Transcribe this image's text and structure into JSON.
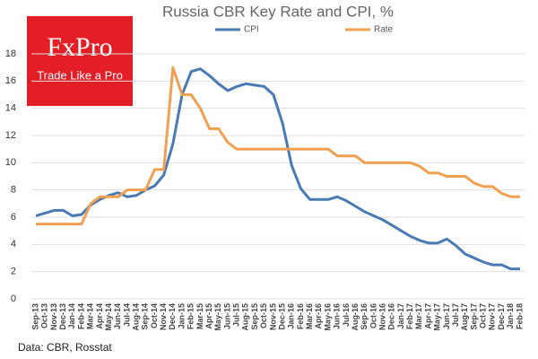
{
  "brand": {
    "name": "FxPro",
    "tagline": "Trade Like a Pro"
  },
  "source": "Data: CBR, Rosstat",
  "chart_data": {
    "type": "line",
    "title": "Russia CBR Key Rate and CPI, %",
    "categories": [
      "Sep-13",
      "Oct-13",
      "Nov-13",
      "Dec-13",
      "Jan-14",
      "Feb-14",
      "Mar-14",
      "Apr-14",
      "May-14",
      "Jun-14",
      "Jul-14",
      "Aug-14",
      "Sep-14",
      "Oct-14",
      "Nov-14",
      "Dec-14",
      "Jan-15",
      "Feb-15",
      "Mar-15",
      "Apr-15",
      "May-15",
      "Jun-15",
      "Jul-15",
      "Aug-15",
      "Sep-15",
      "Oct-15",
      "Nov-15",
      "Dec-15",
      "Jan-16",
      "Feb-16",
      "Mar-16",
      "Apr-16",
      "May-16",
      "Jun-16",
      "Jul-16",
      "Aug-16",
      "Sep-16",
      "Oct-16",
      "Nov-16",
      "Dec-16",
      "Jan-17",
      "Feb-17",
      "Mar-17",
      "Apr-17",
      "May-17",
      "Jun-17",
      "Jul-17",
      "Aug-17",
      "Sep-17",
      "Oct-17",
      "Nov-17",
      "Dec-17",
      "Jan-18",
      "Feb-18"
    ],
    "series": [
      {
        "name": "CPI",
        "color": "#4a7ab5",
        "values": [
          6.1,
          6.3,
          6.5,
          6.5,
          6.1,
          6.2,
          6.9,
          7.3,
          7.6,
          7.8,
          7.5,
          7.6,
          8.0,
          8.3,
          9.1,
          11.4,
          15.0,
          16.7,
          16.9,
          16.4,
          15.8,
          15.3,
          15.6,
          15.8,
          15.7,
          15.6,
          15.0,
          12.9,
          9.8,
          8.1,
          7.3,
          7.3,
          7.3,
          7.5,
          7.2,
          6.8,
          6.4,
          6.1,
          5.8,
          5.4,
          5.0,
          4.6,
          4.3,
          4.1,
          4.1,
          4.4,
          3.9,
          3.3,
          3.0,
          2.7,
          2.5,
          2.5,
          2.2,
          2.2
        ]
      },
      {
        "name": "Rate",
        "color": "#f0a050",
        "values": [
          5.5,
          5.5,
          5.5,
          5.5,
          5.5,
          5.5,
          7,
          7.5,
          7.5,
          7.5,
          8,
          8,
          8,
          9.5,
          9.5,
          17,
          15,
          15,
          14,
          12.5,
          12.5,
          11.5,
          11,
          11,
          11,
          11,
          11,
          11,
          11,
          11,
          11,
          11,
          11,
          10.5,
          10.5,
          10.5,
          10,
          10,
          10,
          10,
          10,
          10,
          9.75,
          9.25,
          9.25,
          9,
          9,
          9,
          8.5,
          8.25,
          8.25,
          7.75,
          7.5,
          7.5
        ]
      }
    ],
    "ylim": [
      0,
      18
    ],
    "yticks": [
      0,
      2,
      4,
      6,
      8,
      10,
      12,
      14,
      16,
      18
    ],
    "grid": true
  }
}
